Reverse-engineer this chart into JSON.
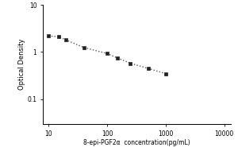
{
  "x_data": [
    10,
    15,
    20,
    40,
    100,
    150,
    250,
    500,
    1000
  ],
  "y_data": [
    2.2,
    2.1,
    1.8,
    1.25,
    0.93,
    0.75,
    0.58,
    0.45,
    0.35
  ],
  "xlabel": "8-epi-PGF2α  concentration(pg/mL)",
  "ylabel": "Optical Density",
  "xlim": [
    8,
    13000
  ],
  "ylim": [
    0.03,
    10
  ],
  "xticks": [
    10,
    100,
    1000,
    10000
  ],
  "xtick_labels": [
    "10",
    "100",
    "1000",
    "10000"
  ],
  "yticks": [
    0.1,
    1,
    10
  ],
  "ytick_labels": [
    "0.1",
    "1",
    "10"
  ],
  "marker": "s",
  "marker_color": "#222222",
  "marker_size": 3,
  "line_style": ":",
  "line_color": "#555555",
  "line_width": 1.0,
  "background_color": "#ffffff"
}
